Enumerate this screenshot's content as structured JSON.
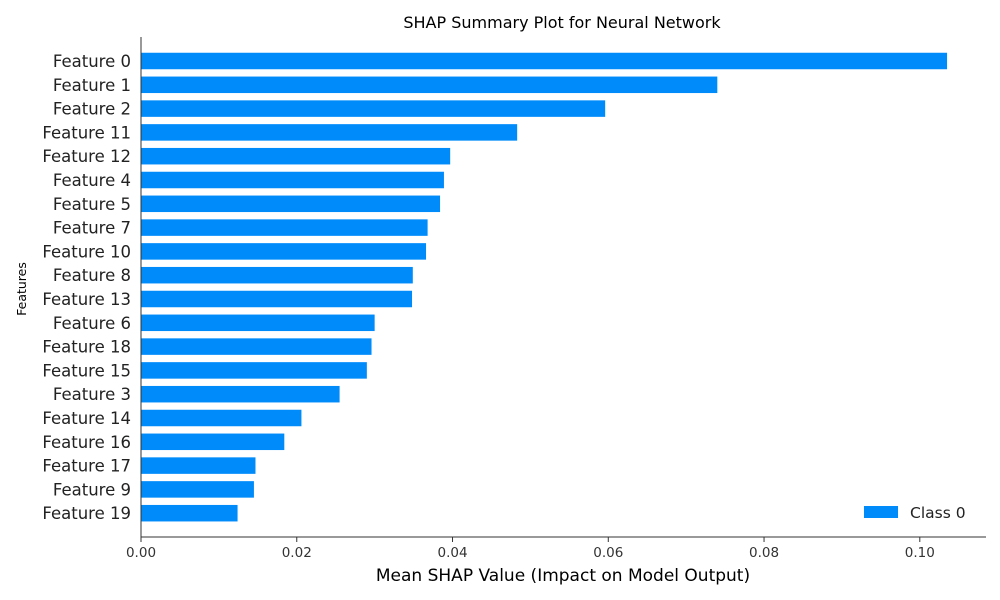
{
  "chart_data": {
    "type": "bar",
    "orientation": "horizontal",
    "title": "SHAP Summary Plot for Neural Network",
    "xlabel": "Mean SHAP Value (Impact on Model Output)",
    "ylabel": "Features",
    "xlim": [
      0.0,
      0.1085
    ],
    "xticks": [
      0.0,
      0.02,
      0.04,
      0.06,
      0.08,
      0.1
    ],
    "xtick_labels": [
      "0.00",
      "0.02",
      "0.04",
      "0.06",
      "0.08",
      "0.10"
    ],
    "grid": false,
    "legend_position": "bottom-right",
    "categories": [
      "Feature 0",
      "Feature 1",
      "Feature 2",
      "Feature 11",
      "Feature 12",
      "Feature 4",
      "Feature 5",
      "Feature 7",
      "Feature 10",
      "Feature 8",
      "Feature 13",
      "Feature 6",
      "Feature 18",
      "Feature 15",
      "Feature 3",
      "Feature 14",
      "Feature 16",
      "Feature 17",
      "Feature 9",
      "Feature 19"
    ],
    "series": [
      {
        "name": "Class 0",
        "color": "#008bfb",
        "values": [
          0.1035,
          0.074,
          0.0596,
          0.0483,
          0.0397,
          0.0389,
          0.0384,
          0.0368,
          0.0366,
          0.0349,
          0.0348,
          0.03,
          0.0296,
          0.029,
          0.0255,
          0.0206,
          0.0184,
          0.0147,
          0.0145,
          0.0124
        ]
      }
    ]
  }
}
